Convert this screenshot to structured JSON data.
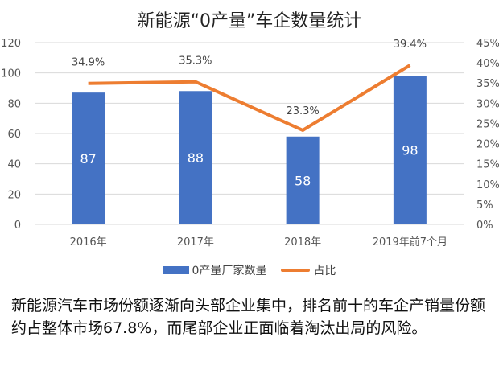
{
  "chart_data": {
    "type": "bar+line",
    "title": "新能源“0产量”车企数量统计",
    "categories": [
      "2016年",
      "2017年",
      "2018年",
      "2019年前7个月"
    ],
    "series": [
      {
        "name": "0产量厂家数量",
        "type": "bar",
        "axis": "left",
        "values": [
          87,
          88,
          58,
          98
        ],
        "labels": [
          "87",
          "88",
          "58",
          "98"
        ],
        "color": "#4472c4"
      },
      {
        "name": "占比",
        "type": "line",
        "axis": "right",
        "values": [
          34.9,
          35.3,
          23.3,
          39.4
        ],
        "labels": [
          "34.9%",
          "35.3%",
          "23.3%",
          "39.4%"
        ],
        "color": "#ed7d31"
      }
    ],
    "y_left": {
      "min": 0,
      "max": 120,
      "ticks": [
        "0",
        "20",
        "40",
        "60",
        "80",
        "100",
        "120"
      ]
    },
    "y_right": {
      "min": 0,
      "max": 45,
      "ticks": [
        "0%",
        "5%",
        "10%",
        "15%",
        "20%",
        "25%",
        "30%",
        "35%",
        "40%",
        "45%"
      ]
    },
    "grid": true,
    "legend": "bottom"
  },
  "caption": "新能源汽车市场份额逐渐向头部企业集中，排名前十的车企产销量份额约占整体市场67.8%，而尾部企业正面临着淘汰出局的风险。"
}
